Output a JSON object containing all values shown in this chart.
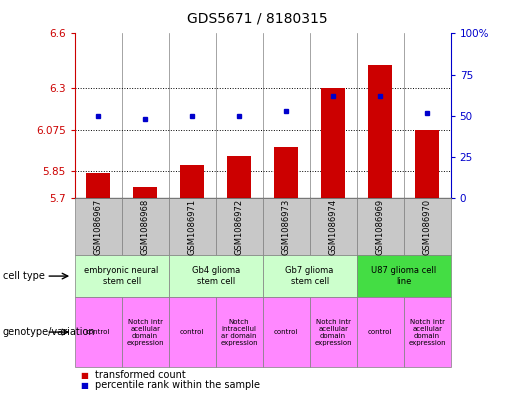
{
  "title": "GDS5671 / 8180315",
  "samples": [
    "GSM1086967",
    "GSM1086968",
    "GSM1086971",
    "GSM1086972",
    "GSM1086973",
    "GSM1086974",
    "GSM1086969",
    "GSM1086970"
  ],
  "transformed_count": [
    5.84,
    5.76,
    5.88,
    5.93,
    5.98,
    6.3,
    6.43,
    6.075
  ],
  "percentile_rank": [
    50,
    48,
    50,
    50,
    53,
    62,
    62,
    52
  ],
  "ylim_left": [
    5.7,
    6.6
  ],
  "ylim_right": [
    0,
    100
  ],
  "yticks_left": [
    5.7,
    5.85,
    6.075,
    6.3,
    6.6
  ],
  "yticks_right": [
    0,
    25,
    50,
    75,
    100
  ],
  "hlines": [
    5.85,
    6.075,
    6.3
  ],
  "bar_color": "#cc0000",
  "dot_color": "#0000cc",
  "bar_bottom": 5.7,
  "cell_type_spans": [
    {
      "label": "embryonic neural\nstem cell",
      "start": 0,
      "end": 2,
      "color": "#ccffcc"
    },
    {
      "label": "Gb4 glioma\nstem cell",
      "start": 2,
      "end": 4,
      "color": "#ccffcc"
    },
    {
      "label": "Gb7 glioma\nstem cell",
      "start": 4,
      "end": 6,
      "color": "#ccffcc"
    },
    {
      "label": "U87 glioma cell\nline",
      "start": 6,
      "end": 8,
      "color": "#44dd44"
    }
  ],
  "geno_spans": [
    {
      "label": "control",
      "start": 0,
      "end": 1
    },
    {
      "label": "Notch intr\nacellular\ndomain\nexpression",
      "start": 1,
      "end": 2
    },
    {
      "label": "control",
      "start": 2,
      "end": 3
    },
    {
      "label": "Notch\nintracellul\nar domain\nexpression",
      "start": 3,
      "end": 4
    },
    {
      "label": "control",
      "start": 4,
      "end": 5
    },
    {
      "label": "Notch intr\nacellular\ndomain\nexpression",
      "start": 5,
      "end": 6
    },
    {
      "label": "control",
      "start": 6,
      "end": 7
    },
    {
      "label": "Notch intr\nacellular\ndomain\nexpression",
      "start": 7,
      "end": 8
    }
  ],
  "geno_color": "#ff88ff",
  "sample_bg_color": "#c8c8c8",
  "left_axis_color": "#cc0000",
  "right_axis_color": "#0000cc",
  "title_fontsize": 10,
  "tick_fontsize": 7.5,
  "sample_fontsize": 6,
  "ct_fontsize": 6,
  "geno_fontsize": 5,
  "legend_fontsize": 7
}
